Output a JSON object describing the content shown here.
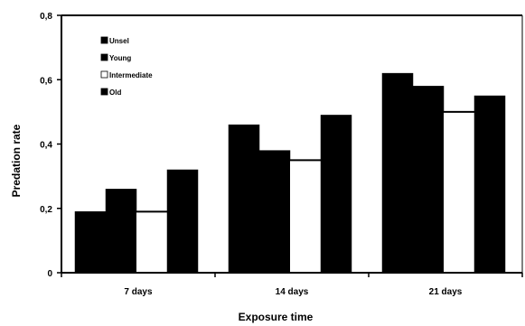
{
  "chart_data": {
    "type": "bar",
    "title": "",
    "xlabel": "Exposure time",
    "ylabel": "Predation rate",
    "categories": [
      "7 days",
      "14 days",
      "21 days"
    ],
    "ylim": [
      0,
      0.8
    ],
    "yticks": [
      "0",
      "0,2",
      "0,4",
      "0,6",
      "0,8"
    ],
    "legend_position": "top-left",
    "series": [
      {
        "name": "Unsel",
        "values": [
          0.19,
          0.46,
          0.62
        ],
        "color": "#000000"
      },
      {
        "name": "Young",
        "values": [
          0.26,
          0.38,
          0.58
        ],
        "color": "#000000"
      },
      {
        "name": "Intermediate",
        "values": [
          0.19,
          0.35,
          0.5
        ],
        "color": "#ffffff"
      },
      {
        "name": "Old",
        "values": [
          0.32,
          0.49,
          0.55
        ],
        "color": "#000000"
      }
    ]
  }
}
